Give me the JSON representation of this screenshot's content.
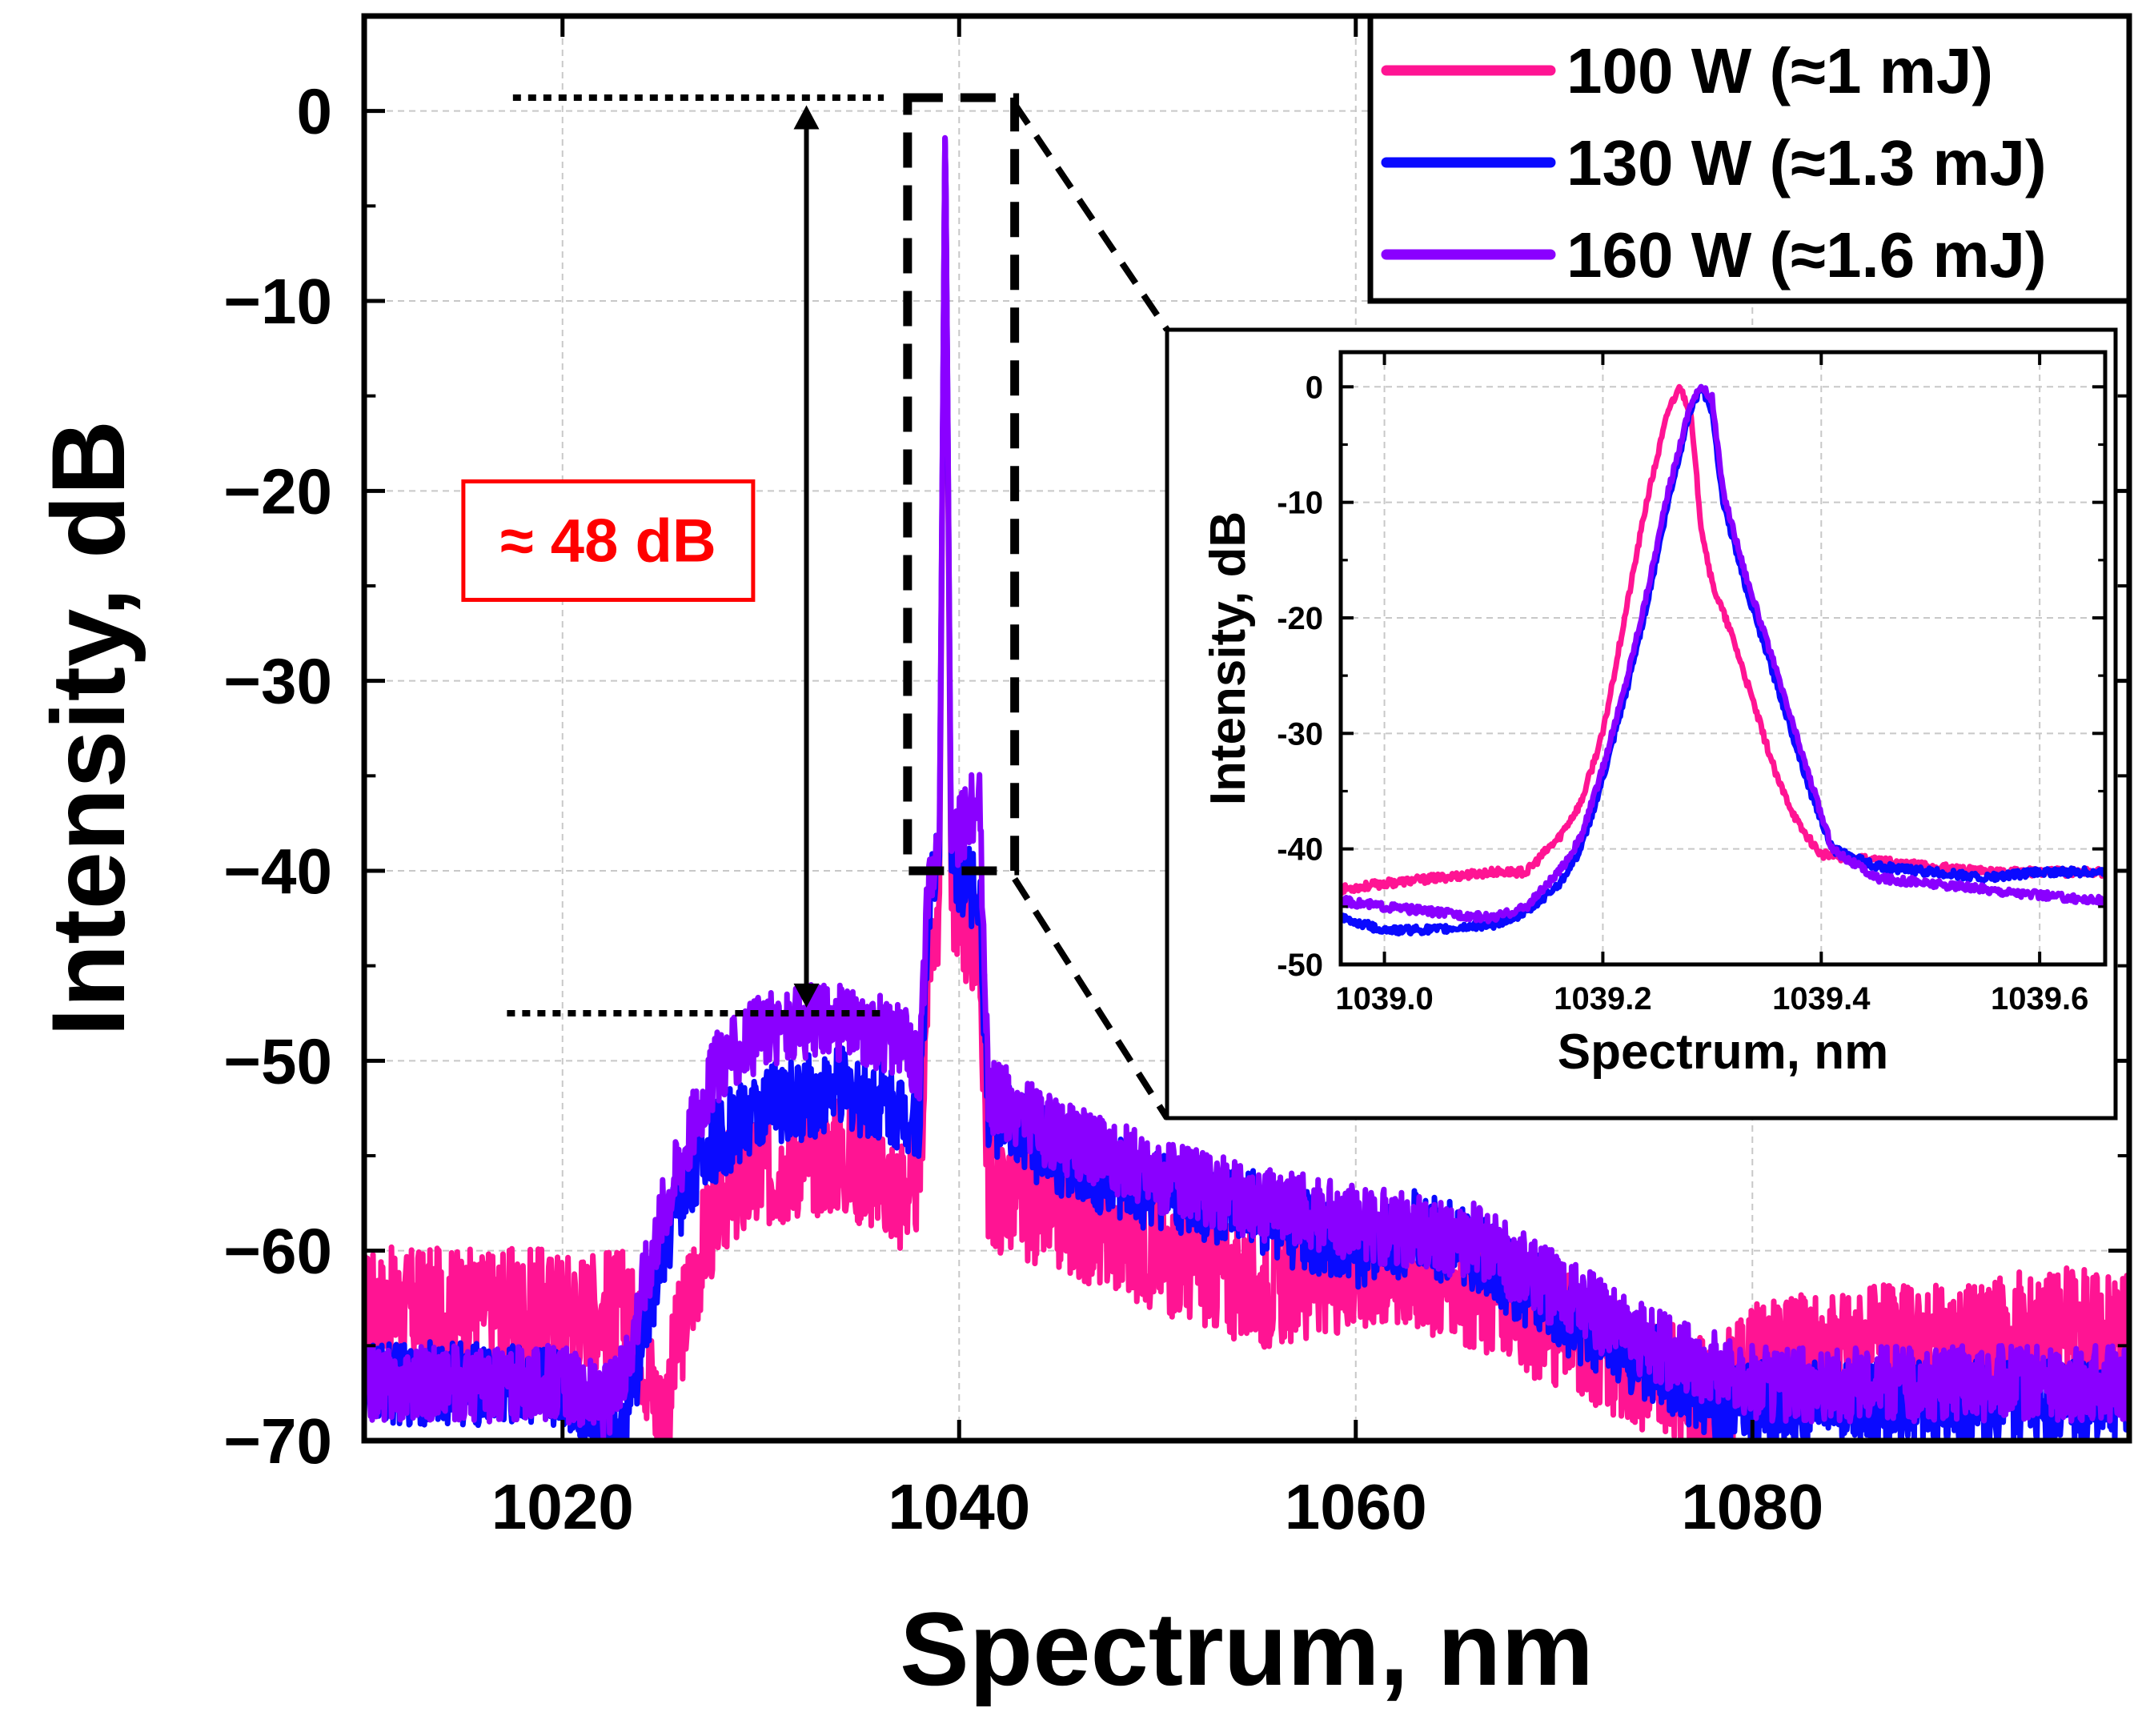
{
  "chart_data": [
    {
      "id": "main",
      "type": "line",
      "title": "",
      "xlabel": "Spectrum, nm",
      "ylabel": "Intensity, dB",
      "xlim": [
        1010,
        1099
      ],
      "ylim": [
        -70,
        5
      ],
      "xticks": [
        1020,
        1040,
        1060,
        1080
      ],
      "xtick_labels": [
        "1020",
        "1040",
        "1060",
        "1080"
      ],
      "yticks": [
        0,
        -10,
        -20,
        -30,
        -40,
        -50,
        -60,
        -70
      ],
      "ytick_labels": [
        "0",
        "−10",
        "−20",
        "−30",
        "−40",
        "−50",
        "−60",
        "−70"
      ],
      "grid": true,
      "legend_position": "top-right",
      "series": [
        {
          "name": "100 W (≈1 mJ)",
          "color": "#ff1493",
          "noise": 3.2,
          "x": [
            1010,
            1020,
            1023,
            1024,
            1025,
            1026,
            1027,
            1028,
            1030,
            1032,
            1034,
            1036,
            1037,
            1038,
            1038.5,
            1039,
            1039.3,
            1039.6,
            1040,
            1040.5,
            1041,
            1041.5,
            1042,
            1045,
            1050,
            1055,
            1060,
            1063,
            1066,
            1070,
            1074,
            1078,
            1080,
            1085,
            1090,
            1095,
            1099
          ],
          "y": [
            -63,
            -63,
            -63,
            -65,
            -69,
            -64,
            -60,
            -57,
            -56,
            -55,
            -55,
            -56,
            -57,
            -56,
            -44,
            -42,
            0,
            -42,
            -42,
            -43,
            -44,
            -57,
            -57,
            -58,
            -60,
            -62,
            -61,
            -61,
            -62,
            -64,
            -66,
            -68,
            -66,
            -65,
            -65,
            -64,
            -64
          ]
        },
        {
          "name": "130 W (≈1.3 mJ)",
          "color": "#0a0aff",
          "noise": 2.2,
          "x": [
            1010,
            1015,
            1020,
            1022,
            1023,
            1024,
            1025,
            1026,
            1027,
            1028,
            1030,
            1032,
            1034,
            1036,
            1037,
            1038,
            1038.5,
            1039,
            1039.3,
            1039.6,
            1040,
            1040.5,
            1041,
            1041.5,
            1042,
            1045,
            1050,
            1055,
            1060,
            1063,
            1066,
            1070,
            1075,
            1078,
            1080,
            1090,
            1095,
            1099
          ],
          "y": [
            -67,
            -67,
            -67,
            -69,
            -70,
            -65,
            -60,
            -57,
            -55,
            -54,
            -52.5,
            -52,
            -51.5,
            -52,
            -52.5,
            -53,
            -41,
            -40,
            0,
            -40,
            -40,
            -41,
            -41,
            -53,
            -53,
            -55,
            -57,
            -58,
            -60,
            -59,
            -60,
            -63,
            -66,
            -68,
            -68,
            -68,
            -68,
            -68
          ]
        },
        {
          "name": "160 W (≈1.6 mJ)",
          "color": "#8a00ff",
          "noise": 2.0,
          "x": [
            1010,
            1015,
            1020,
            1022,
            1023,
            1024,
            1025,
            1026,
            1027,
            1028,
            1030,
            1032,
            1034,
            1036,
            1037,
            1038,
            1038.5,
            1039,
            1039.3,
            1039.6,
            1040,
            1040.5,
            1041,
            1041.5,
            1042,
            1045,
            1050,
            1055,
            1060,
            1063,
            1066,
            1070,
            1075,
            1080,
            1085,
            1090,
            1095,
            1099
          ],
          "y": [
            -67,
            -67,
            -67,
            -68,
            -67,
            -62,
            -58,
            -55,
            -52,
            -50,
            -48.5,
            -48,
            -48,
            -48.5,
            -49,
            -50,
            -40,
            -39,
            0,
            -39,
            -38,
            -37,
            -36,
            -52,
            -52,
            -54,
            -56,
            -57.5,
            -58.5,
            -59,
            -59.5,
            -62,
            -65,
            -67,
            -67,
            -67,
            -67,
            -67
          ]
        }
      ],
      "annotations": [
        {
          "text": "≈ 48 dB",
          "color": "#ff0000",
          "from_y": 0,
          "to_y": -47.5,
          "x": 1032.3
        }
      ],
      "zoom_box": {
        "x": [
          1037.4,
          1042.8
        ],
        "y": [
          -40,
          0.7
        ]
      }
    },
    {
      "id": "inset",
      "type": "line",
      "title": "",
      "xlabel": "Spectrum, nm",
      "ylabel": "Intensity, dB",
      "xlim": [
        1038.96,
        1039.66
      ],
      "ylim": [
        -50,
        3
      ],
      "xticks": [
        1039.0,
        1039.2,
        1039.4,
        1039.6
      ],
      "xtick_labels": [
        "1039.0",
        "1039.2",
        "1039.4",
        "1039.6"
      ],
      "yticks": [
        0,
        -10,
        -20,
        -30,
        -40,
        -50
      ],
      "ytick_labels": [
        "0",
        "-10",
        "-20",
        "-30",
        "-40",
        "-50"
      ],
      "grid": true,
      "series": [
        {
          "name": "100 W (≈1 mJ)",
          "color": "#ff1493",
          "noise": 0.35,
          "x": [
            1038.96,
            1039.0,
            1039.05,
            1039.1,
            1039.13,
            1039.16,
            1039.18,
            1039.2,
            1039.22,
            1039.24,
            1039.26,
            1039.27,
            1039.28,
            1039.29,
            1039.3,
            1039.32,
            1039.34,
            1039.36,
            1039.38,
            1039.4,
            1039.45,
            1039.5,
            1039.55,
            1039.6,
            1039.66
          ],
          "y": [
            -43.5,
            -43,
            -42.5,
            -42,
            -42,
            -39,
            -36,
            -30,
            -20,
            -10,
            -2,
            0,
            -2,
            -12,
            -17,
            -22,
            -28,
            -34,
            -38,
            -40.5,
            -41,
            -41.5,
            -42,
            -42,
            -42
          ]
        },
        {
          "name": "130 W (≈1.3 mJ)",
          "color": "#0a0aff",
          "noise": 0.35,
          "x": [
            1038.96,
            1039.0,
            1039.05,
            1039.1,
            1039.13,
            1039.16,
            1039.18,
            1039.2,
            1039.22,
            1039.24,
            1039.26,
            1039.28,
            1039.29,
            1039.3,
            1039.31,
            1039.33,
            1039.35,
            1039.37,
            1039.39,
            1039.41,
            1039.45,
            1039.5,
            1039.55,
            1039.6,
            1039.66
          ],
          "y": [
            -46,
            -47,
            -47,
            -46.5,
            -45.5,
            -43,
            -40,
            -34,
            -27,
            -19,
            -10,
            -2,
            0,
            -2,
            -10,
            -17,
            -23,
            -29,
            -35,
            -40,
            -41.5,
            -42,
            -42.5,
            -42,
            -42
          ]
        },
        {
          "name": "160 W (≈1.6 mJ)",
          "color": "#8a00ff",
          "noise": 0.35,
          "x": [
            1038.96,
            1039.0,
            1039.05,
            1039.1,
            1039.13,
            1039.16,
            1039.18,
            1039.2,
            1039.22,
            1039.24,
            1039.26,
            1039.28,
            1039.29,
            1039.3,
            1039.31,
            1039.33,
            1039.35,
            1039.37,
            1039.39,
            1039.41,
            1039.45,
            1039.5,
            1039.55,
            1039.6,
            1039.66
          ],
          "y": [
            -44.5,
            -45,
            -45.5,
            -46,
            -45,
            -42,
            -39,
            -33,
            -26,
            -18,
            -9,
            -1.5,
            0,
            -1,
            -9,
            -16,
            -22,
            -28,
            -34,
            -40,
            -42.5,
            -43,
            -43.5,
            -44,
            -44.5
          ]
        }
      ]
    }
  ]
}
